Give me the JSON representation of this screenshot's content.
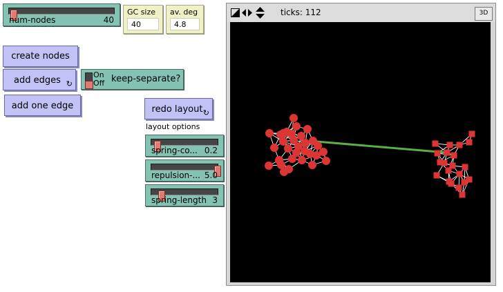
{
  "sliders": [
    {
      "id": "num-nodes",
      "label": "num-nodes",
      "value": "40",
      "fraction": 0.06
    },
    {
      "id": "spring-constant",
      "label": "spring-co...",
      "value": "0.2",
      "fraction": 0.06
    },
    {
      "id": "repulsion",
      "label": "repulsion-...",
      "value": "5.0",
      "fraction": 1.0
    },
    {
      "id": "spring-length",
      "label": "spring-length",
      "value": "3",
      "fraction": 0.1
    }
  ],
  "monitors": [
    {
      "label": "GC size",
      "value": "40"
    },
    {
      "label": "av. deg",
      "value": "4.8"
    }
  ],
  "buttons": {
    "create_nodes": "create nodes",
    "add_edges": "add edges",
    "add_one_edge": "add one edge",
    "redo_layout": "redo layout",
    "forever_glyph": "↻"
  },
  "switch": {
    "label": "keep-separate?",
    "on": "On",
    "off": "Off",
    "state": "Off"
  },
  "layout_options_label": "layout options",
  "view": {
    "ticks_label": "ticks: 112",
    "btn_3d": "3D",
    "colors": {
      "background": "#000000",
      "node": "#dd3434",
      "edge": "#ffffff",
      "bridge": "#59b045"
    }
  }
}
